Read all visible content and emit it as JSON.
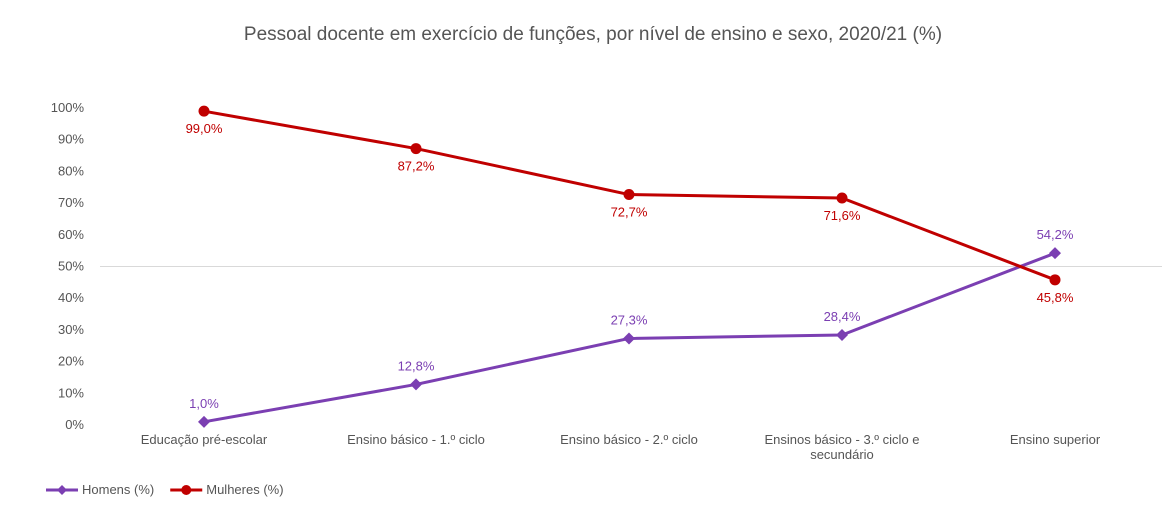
{
  "chart_data": {
    "type": "line",
    "title": "Pessoal docente em exercício de funções, por nível de ensino e sexo, 2020/21 (%)",
    "categories": [
      [
        "Educação pré-escolar"
      ],
      [
        "Ensino básico - 1.º ciclo"
      ],
      [
        "Ensino básico - 2.º ciclo"
      ],
      [
        "Ensinos básico - 3.º ciclo e",
        "secundário"
      ],
      [
        "Ensino superior"
      ]
    ],
    "ylim": [
      0,
      100
    ],
    "yticks": [
      0,
      10,
      20,
      30,
      40,
      50,
      60,
      70,
      80,
      90,
      100
    ],
    "ytick_labels": [
      "0%",
      "10%",
      "20%",
      "30%",
      "40%",
      "50%",
      "60%",
      "70%",
      "80%",
      "90%",
      "100%"
    ],
    "gridline": 50,
    "legend_position": "bottom-left",
    "series": [
      {
        "name": "Homens (%)",
        "color": "#7b3fb2",
        "marker": "diamond",
        "values": [
          1.0,
          12.8,
          27.3,
          28.4,
          54.2
        ],
        "labels": [
          "1,0%",
          "12,8%",
          "27,3%",
          "28,4%",
          "54,2%"
        ]
      },
      {
        "name": "Mulheres (%)",
        "color": "#c00000",
        "marker": "circle",
        "values": [
          99.0,
          87.2,
          72.7,
          71.6,
          45.8
        ],
        "labels": [
          "99,0%",
          "87,2%",
          "72,7%",
          "71,6%",
          "45,8%"
        ]
      }
    ]
  }
}
